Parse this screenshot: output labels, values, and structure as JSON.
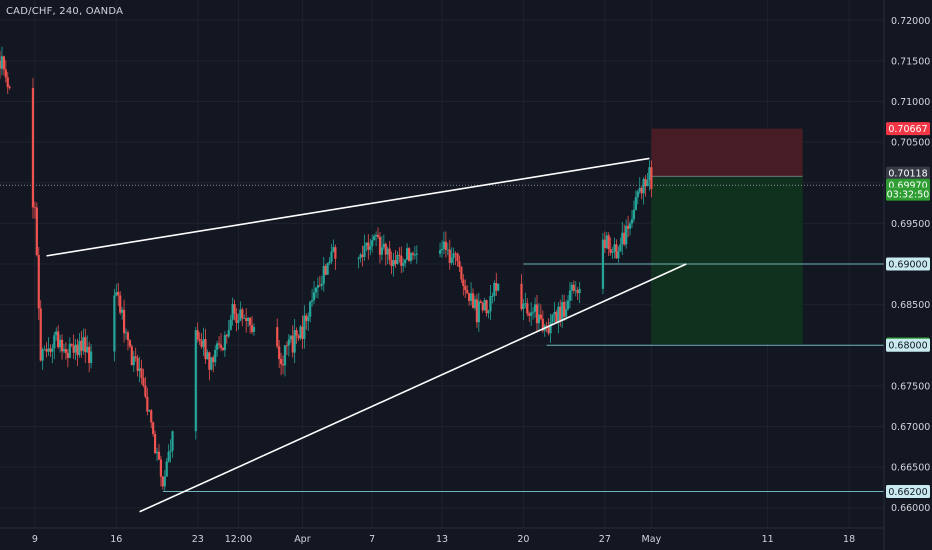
{
  "header": {
    "title": "CAD/CHF, 240, OANDA"
  },
  "colors": {
    "background": "#131722",
    "bull": "#26a69a",
    "bear": "#ef5350",
    "grid": "#1e222d",
    "text": "#d1d4dc",
    "trendline": "#ffffff",
    "hline": "#6fb5b8",
    "stop_zone": "#4a1c25",
    "target_zone": "#113320",
    "stop_badge": "#f23645",
    "target_badge": "#2e9e33",
    "last_price_badge": "#363a45",
    "level_badge": "#c9ebef"
  },
  "chart_data": {
    "type": "candlestick",
    "symbol": "CAD/CHF",
    "timeframe": "240",
    "broker": "OANDA",
    "y_range": [
      0.6575,
      0.7225
    ],
    "y_ticks": [
      "0.72000",
      "0.71500",
      "0.71000",
      "0.70500",
      "0.70000",
      "0.69500",
      "0.69000",
      "0.68500",
      "0.68000",
      "0.67500",
      "0.67000",
      "0.66500",
      "0.66000"
    ],
    "y_tick_values": [
      0.72,
      0.715,
      0.71,
      0.705,
      0.7,
      0.695,
      0.69,
      0.685,
      0.68,
      0.675,
      0.67,
      0.665,
      0.66
    ],
    "x_ticks": [
      "9",
      "16",
      "23",
      "12:00",
      "Apr",
      "7",
      "13",
      "20",
      "27",
      "May",
      "11",
      "18"
    ],
    "x_tick_values": [
      "2020-03-09",
      "2020-03-16",
      "2020-03-23",
      "2020-03-26 12:00",
      "2020-04-01",
      "2020-04-07",
      "2020-04-13",
      "2020-04-20",
      "2020-04-27",
      "2020-05-01",
      "2020-05-11",
      "2020-05-18"
    ],
    "x_range": [
      "2020-03-06",
      "2020-05-21"
    ],
    "price_path": [
      {
        "t": "2020-03-06",
        "p": 0.715
      },
      {
        "t": "2020-03-07",
        "p": 0.712
      },
      {
        "t": "2020-03-08",
        "p": 0.703
      },
      {
        "t": "2020-03-09",
        "p": 0.696
      },
      {
        "t": "2020-03-09 12:00",
        "p": 0.678
      },
      {
        "t": "2020-03-10",
        "p": 0.68
      },
      {
        "t": "2020-03-11",
        "p": 0.681
      },
      {
        "t": "2020-03-12",
        "p": 0.679
      },
      {
        "t": "2020-03-13",
        "p": 0.68
      },
      {
        "t": "2020-03-14",
        "p": 0.6785
      },
      {
        "t": "2020-03-15",
        "p": 0.683
      },
      {
        "t": "2020-03-16",
        "p": 0.687
      },
      {
        "t": "2020-03-17",
        "p": 0.68
      },
      {
        "t": "2020-03-18",
        "p": 0.676
      },
      {
        "t": "2020-03-19",
        "p": 0.67
      },
      {
        "t": "2020-03-20",
        "p": 0.6625
      },
      {
        "t": "2020-03-21",
        "p": 0.67
      },
      {
        "t": "2020-03-22",
        "p": 0.685
      },
      {
        "t": "2020-03-23",
        "p": 0.682
      },
      {
        "t": "2020-03-24",
        "p": 0.678
      },
      {
        "t": "2020-03-25",
        "p": 0.68
      },
      {
        "t": "2020-03-26",
        "p": 0.684
      },
      {
        "t": "2020-03-27",
        "p": 0.684
      },
      {
        "t": "2020-03-28",
        "p": 0.681
      },
      {
        "t": "2020-03-29",
        "p": 0.683
      },
      {
        "t": "2020-03-30",
        "p": 0.678
      },
      {
        "t": "2020-03-31",
        "p": 0.68
      },
      {
        "t": "2020-04-01",
        "p": 0.682
      },
      {
        "t": "2020-04-02",
        "p": 0.686
      },
      {
        "t": "2020-04-03",
        "p": 0.689
      },
      {
        "t": "2020-04-04",
        "p": 0.692
      },
      {
        "t": "2020-04-05",
        "p": 0.6925
      },
      {
        "t": "2020-04-06",
        "p": 0.691
      },
      {
        "t": "2020-04-07",
        "p": 0.693
      },
      {
        "t": "2020-04-08",
        "p": 0.692
      },
      {
        "t": "2020-04-09",
        "p": 0.6905
      },
      {
        "t": "2020-04-10",
        "p": 0.691
      },
      {
        "t": "2020-04-11",
        "p": 0.69
      },
      {
        "t": "2020-04-12",
        "p": 0.691
      },
      {
        "t": "2020-04-13",
        "p": 0.693
      },
      {
        "t": "2020-04-14",
        "p": 0.6905
      },
      {
        "t": "2020-04-15",
        "p": 0.688
      },
      {
        "t": "2020-04-16",
        "p": 0.684
      },
      {
        "t": "2020-04-17",
        "p": 0.685
      },
      {
        "t": "2020-04-18",
        "p": 0.688
      },
      {
        "t": "2020-04-19",
        "p": 0.6875
      },
      {
        "t": "2020-04-20",
        "p": 0.685
      },
      {
        "t": "2020-04-21",
        "p": 0.684
      },
      {
        "t": "2020-04-22",
        "p": 0.6815
      },
      {
        "t": "2020-04-23",
        "p": 0.6835
      },
      {
        "t": "2020-04-24",
        "p": 0.686
      },
      {
        "t": "2020-04-25",
        "p": 0.688
      },
      {
        "t": "2020-04-26",
        "p": 0.694
      },
      {
        "t": "2020-04-27",
        "p": 0.693
      },
      {
        "t": "2020-04-28",
        "p": 0.691
      },
      {
        "t": "2020-04-29",
        "p": 0.695
      },
      {
        "t": "2020-04-30",
        "p": 0.6985
      },
      {
        "t": "2020-04-30 20:00",
        "p": 0.702
      },
      {
        "t": "2020-05-01",
        "p": 0.6995
      }
    ],
    "trendlines": [
      {
        "from": {
          "t": "2020-03-10",
          "p": 0.691
        },
        "to": {
          "t": "2020-04-30 20:00",
          "p": 0.703
        }
      },
      {
        "from": {
          "t": "2020-03-18",
          "p": 0.6595
        },
        "to": {
          "t": "2020-05-04",
          "p": 0.69
        }
      }
    ],
    "horizontal_levels": [
      {
        "value": 0.69,
        "from": "2020-04-20"
      },
      {
        "value": 0.68,
        "from": "2020-04-22"
      },
      {
        "value": 0.662,
        "from": "2020-03-20"
      },
      {
        "value": 0.6997,
        "dotted": true
      }
    ],
    "position": {
      "type": "short",
      "from": "2020-05-01",
      "to": "2020-05-14",
      "stop": 0.70667,
      "entry": 0.7008,
      "target": 0.68015
    },
    "price_labels": [
      {
        "value": 0.70667,
        "label": "0.70667",
        "kind": "stop"
      },
      {
        "value": 0.70118,
        "label": "0.70118",
        "kind": "last"
      },
      {
        "value": 0.6997,
        "label": "0.69970",
        "kind": "target"
      },
      {
        "value": 0.6986,
        "label": "03:32:50",
        "kind": "target"
      },
      {
        "value": 0.69,
        "label": "0.69000",
        "kind": "level"
      },
      {
        "value": 0.68015,
        "label": "0.68015",
        "kind": "target"
      },
      {
        "value": 0.68,
        "label": "0.68000",
        "kind": "level"
      },
      {
        "value": 0.662,
        "label": "0.66200",
        "kind": "level"
      }
    ]
  }
}
